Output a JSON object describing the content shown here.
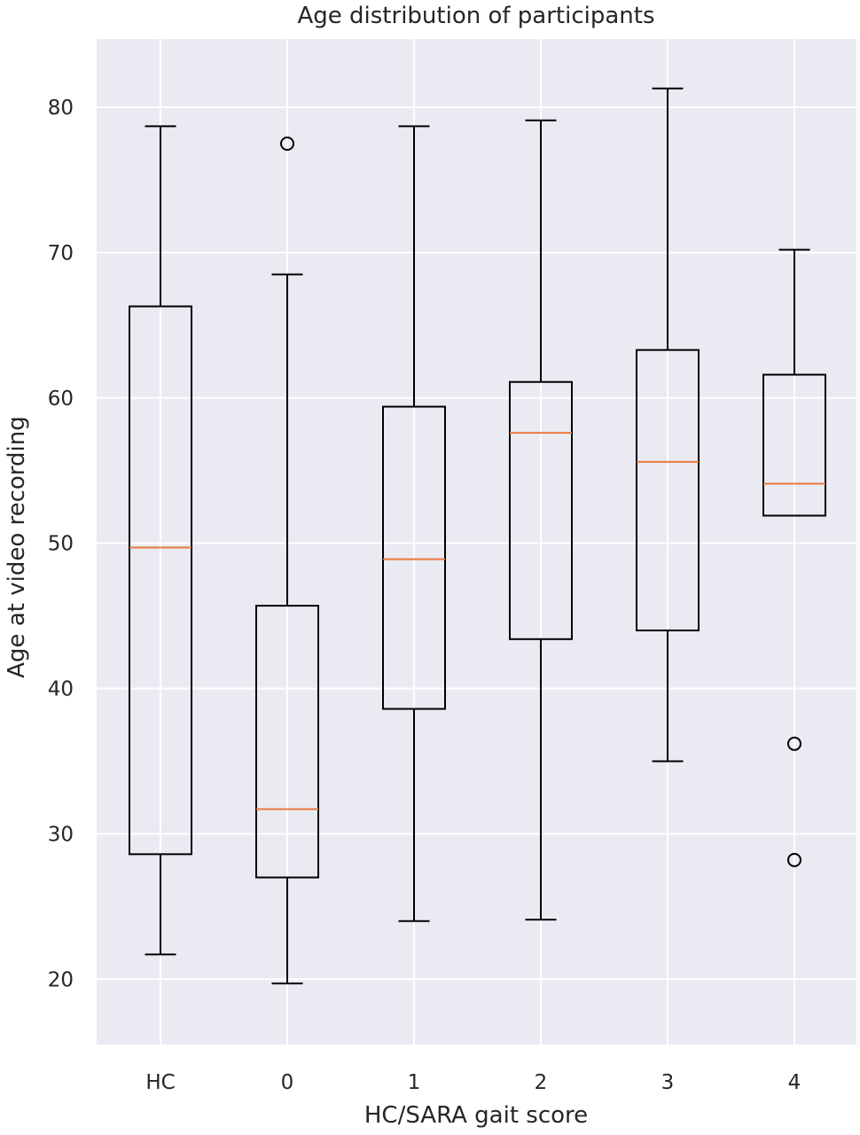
{
  "chart_data": {
    "type": "boxplot",
    "title": "Age distribution of participants",
    "xlabel": "HC/SARA gait score",
    "ylabel": "Age at video recording",
    "categories": [
      "HC",
      "0",
      "1",
      "2",
      "3",
      "4"
    ],
    "ylim": [
      15.5,
      84.7
    ],
    "yticks": [
      20,
      30,
      40,
      50,
      60,
      70,
      80
    ],
    "grid": true,
    "colors": {
      "background": "#eaeaf2",
      "grid": "#ffffff",
      "box": "#000000",
      "median": "#e87a3f"
    },
    "boxes": [
      {
        "category": "HC",
        "whislo": 21.7,
        "q1": 28.6,
        "med": 49.7,
        "q3": 66.3,
        "whishi": 78.7,
        "fliers": []
      },
      {
        "category": "0",
        "whislo": 19.7,
        "q1": 27.0,
        "med": 31.7,
        "q3": 45.7,
        "whishi": 68.5,
        "fliers": [
          77.5
        ]
      },
      {
        "category": "1",
        "whislo": 24.0,
        "q1": 38.6,
        "med": 48.9,
        "q3": 59.4,
        "whishi": 78.7,
        "fliers": []
      },
      {
        "category": "2",
        "whislo": 24.1,
        "q1": 43.4,
        "med": 57.6,
        "q3": 61.1,
        "whishi": 79.1,
        "fliers": []
      },
      {
        "category": "3",
        "whislo": 35.0,
        "q1": 44.0,
        "med": 55.6,
        "q3": 63.3,
        "whishi": 81.3,
        "fliers": []
      },
      {
        "category": "4",
        "whislo": 51.9,
        "q1": 51.9,
        "med": 54.1,
        "q3": 61.6,
        "whishi": 70.2,
        "fliers": [
          36.2,
          28.2
        ]
      }
    ]
  }
}
